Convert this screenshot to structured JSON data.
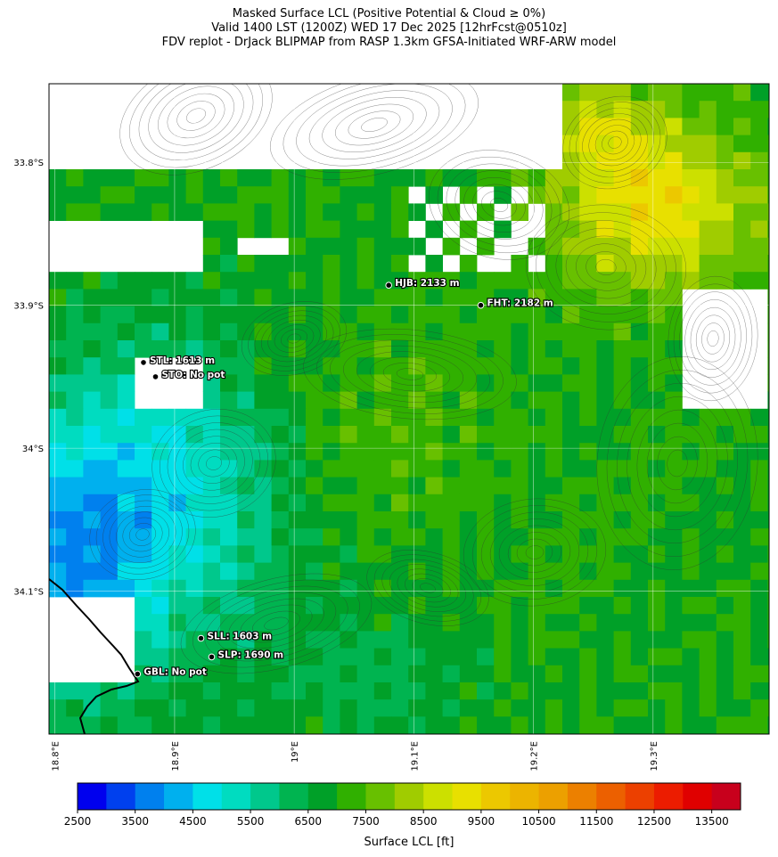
{
  "title": {
    "line1": "Masked Surface LCL (Positive Potential & Cloud ≥ 0%)",
    "line2": "Valid 1400 LST (1200Z) WED 17 Dec 2025 [12hrFcst@0510z]",
    "line3": "FDV replot - DrJack BLIPMAP from RASP 1.3km GFSA-Initiated WRF-ARW model"
  },
  "map": {
    "lon_range": [
      18.795,
      19.397
    ],
    "lat_range": [
      -34.2,
      -33.745
    ],
    "lat_ticks": [
      {
        "value": -33.8,
        "label": "33.8°S"
      },
      {
        "value": -33.9,
        "label": "33.9°S"
      },
      {
        "value": -34.0,
        "label": "34°S"
      },
      {
        "value": -34.1,
        "label": "34.1°S"
      }
    ],
    "lon_ticks": [
      {
        "value": 18.8,
        "label": "18.8°E"
      },
      {
        "value": 18.9,
        "label": "18.9°E"
      },
      {
        "value": 19.0,
        "label": "19°E"
      },
      {
        "value": 19.1,
        "label": "19.1°E"
      },
      {
        "value": 19.2,
        "label": "19.2°E"
      },
      {
        "value": 19.3,
        "label": "19.3°E"
      }
    ],
    "stations": [
      {
        "code": "HJB",
        "label": "HJB: 2133 m",
        "lon": 19.079,
        "lat": -33.886
      },
      {
        "code": "FHT",
        "label": "FHT: 2182 m",
        "lon": 19.156,
        "lat": -33.9
      },
      {
        "code": "STL",
        "label": "STL: 1613 m",
        "lon": 18.874,
        "lat": -33.94
      },
      {
        "code": "STO",
        "label": "STO: No pot",
        "lon": 18.884,
        "lat": -33.95
      },
      {
        "code": "SLL",
        "label": "SLL: 1603 m",
        "lon": 18.922,
        "lat": -34.133
      },
      {
        "code": "SLP",
        "label": "SLP: 1690 m",
        "lon": 18.931,
        "lat": -34.146
      },
      {
        "code": "GBL",
        "label": "GBL: No pot",
        "lon": 18.869,
        "lat": -34.158
      }
    ]
  },
  "colorbar": {
    "title": "Surface LCL [ft]",
    "min": 2500,
    "max": 14000,
    "step": 500,
    "tick_labels": [
      "2500",
      "3500",
      "4500",
      "5500",
      "6500",
      "7500",
      "8500",
      "9500",
      "10500",
      "11500",
      "12500",
      "13500"
    ],
    "colors": [
      "#0000ee",
      "#0040ee",
      "#0080ee",
      "#00b0ee",
      "#00e0e8",
      "#00dcc0",
      "#00c88c",
      "#00b450",
      "#00a028",
      "#30b000",
      "#68c000",
      "#a0cc00",
      "#cce000",
      "#e8e000",
      "#ecc800",
      "#ecb400",
      "#eca000",
      "#ec8000",
      "#ec6000",
      "#ec4000",
      "#ec1c00",
      "#e00000",
      "#c8001c"
    ]
  }
}
